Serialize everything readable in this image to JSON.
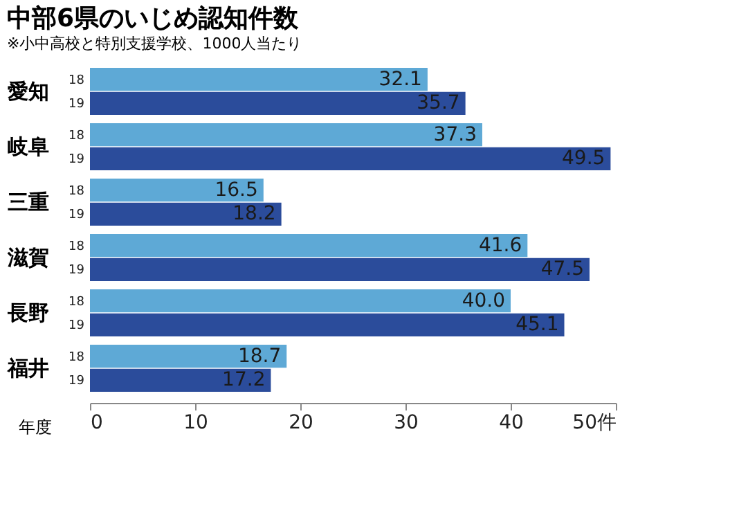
{
  "chart_data": {
    "type": "bar",
    "orientation": "horizontal",
    "title": "中部6県のいじめ認知件数",
    "annotations": [
      "※小中高校と特別支援学校、1000人当たり"
    ],
    "legend_title": "年度",
    "categories": [
      "愛知",
      "岐阜",
      "三重",
      "滋賀",
      "長野",
      "福井"
    ],
    "series": [
      {
        "name": "18",
        "color": "#5ea9d6",
        "values": [
          32.1,
          37.3,
          16.5,
          41.6,
          40.0,
          18.7
        ],
        "value_labels": [
          "32.1",
          "37.3",
          "16.5",
          "41.6",
          "40.0",
          "18.7"
        ]
      },
      {
        "name": "19",
        "color": "#2b4c9b",
        "values": [
          35.7,
          49.5,
          18.2,
          47.5,
          45.1,
          17.2
        ],
        "value_labels": [
          "35.7",
          "49.5",
          "18.2",
          "47.5",
          "45.1",
          "17.2"
        ]
      }
    ],
    "xlim": [
      0,
      50
    ],
    "xticks": [
      0,
      10,
      20,
      30,
      40,
      {
        "value": 50,
        "label": "50件"
      }
    ],
    "grid": false,
    "legend": false
  }
}
